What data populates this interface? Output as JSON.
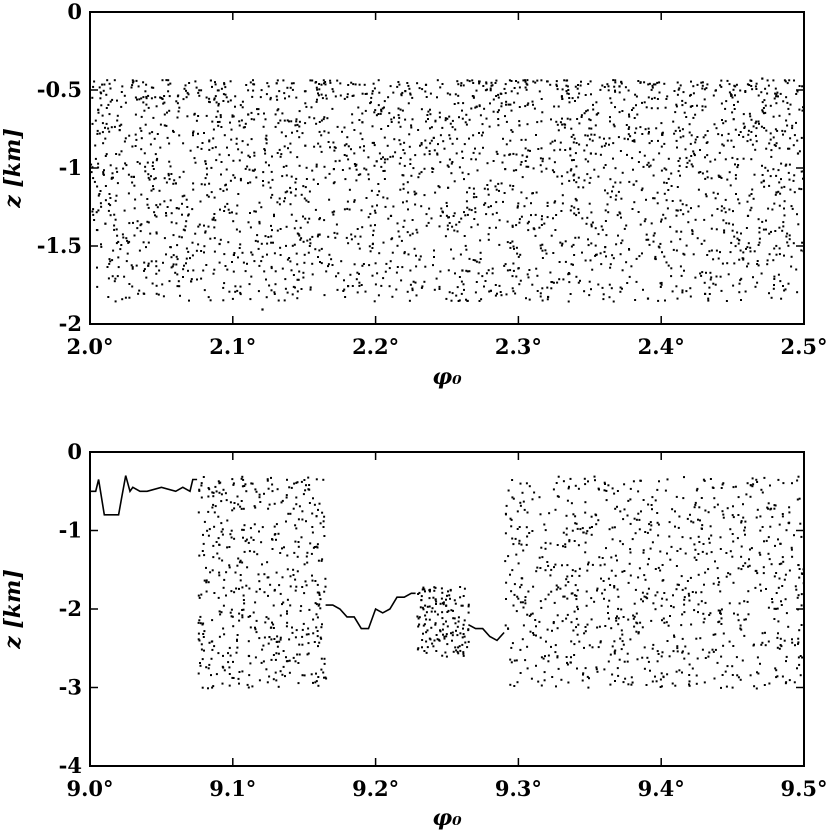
{
  "chart_data": [
    {
      "type": "scatter",
      "xlabel": "φ₀",
      "ylabel": "z [km]",
      "xlim": [
        2.0,
        2.5
      ],
      "ylim": [
        -2,
        0
      ],
      "x_ticks": [
        "2.0°",
        "2.1°",
        "2.2°",
        "2.3°",
        "2.4°",
        "2.5°"
      ],
      "x_tick_values": [
        2.0,
        2.1,
        2.2,
        2.3,
        2.4,
        2.5
      ],
      "y_ticks": [
        "0",
        "-0.5",
        "-1",
        "-1.5",
        "-2"
      ],
      "y_tick_values": [
        0,
        -0.5,
        -1,
        -1.5,
        -2
      ],
      "grid": false,
      "dense_band": {
        "x_range": [
          2.0,
          2.5
        ],
        "z_range": [
          -1.85,
          -0.43
        ],
        "approx_points": 2600
      },
      "series": [
        {
          "points": [
            [
              2.005,
              -0.62
            ],
            [
              2.01,
              -1.35
            ],
            [
              2.02,
              -0.75
            ],
            [
              2.03,
              -1.05
            ],
            [
              2.04,
              -1.62
            ],
            [
              2.05,
              -0.55
            ],
            [
              2.06,
              -1.25
            ],
            [
              2.07,
              -1.72
            ],
            [
              2.08,
              -0.95
            ],
            [
              2.09,
              -1.48
            ],
            [
              2.1,
              -1.55
            ],
            [
              2.11,
              -0.65
            ],
            [
              2.12,
              -1.9
            ],
            [
              2.13,
              -0.45
            ],
            [
              2.14,
              -1.15
            ],
            [
              2.15,
              -0.85
            ],
            [
              2.16,
              -1.42
            ],
            [
              2.17,
              -1.0
            ],
            [
              2.18,
              -1.75
            ],
            [
              2.19,
              -0.7
            ],
            [
              2.2,
              -0.95
            ],
            [
              2.21,
              -1.3
            ],
            [
              2.22,
              -0.5
            ],
            [
              2.23,
              -1.58
            ],
            [
              2.24,
              -0.8
            ],
            [
              2.25,
              -1.12
            ],
            [
              2.26,
              -1.65
            ],
            [
              2.27,
              -0.6
            ],
            [
              2.28,
              -1.78
            ],
            [
              2.29,
              -1.0
            ],
            [
              2.3,
              -0.72
            ],
            [
              2.31,
              -1.38
            ],
            [
              2.32,
              -1.82
            ],
            [
              2.33,
              -0.55
            ],
            [
              2.34,
              -1.2
            ],
            [
              2.35,
              -0.9
            ],
            [
              2.36,
              -1.5
            ],
            [
              2.37,
              -0.47
            ],
            [
              2.38,
              -1.1
            ],
            [
              2.39,
              -1.83
            ],
            [
              2.4,
              -0.78
            ],
            [
              2.41,
              -1.4
            ],
            [
              2.42,
              -0.6
            ],
            [
              2.43,
              -1.8
            ],
            [
              2.44,
              -1.05
            ],
            [
              2.45,
              -0.68
            ],
            [
              2.46,
              -1.3
            ],
            [
              2.47,
              -0.42
            ],
            [
              2.48,
              -1.15
            ],
            [
              2.495,
              -0.9
            ]
          ]
        }
      ]
    },
    {
      "type": "scatter",
      "xlabel": "φ₀",
      "ylabel": "z [km]",
      "xlim": [
        9.0,
        9.5
      ],
      "ylim": [
        -4,
        0
      ],
      "x_ticks": [
        "9.0°",
        "9.1°",
        "9.2°",
        "9.3°",
        "9.4°",
        "9.5°"
      ],
      "x_tick_values": [
        9.0,
        9.1,
        9.2,
        9.3,
        9.4,
        9.5
      ],
      "y_ticks": [
        "0",
        "-1",
        "-2",
        "-3",
        "-4"
      ],
      "y_tick_values": [
        0,
        -1,
        -2,
        -3,
        -4
      ],
      "grid": false,
      "curves": [
        {
          "x": [
            9.0,
            9.004,
            9.006,
            9.01,
            9.015,
            9.02,
            9.022,
            9.025,
            9.028,
            9.03,
            9.035,
            9.04,
            9.05,
            9.06,
            9.065,
            9.07,
            9.072,
            9.075
          ],
          "z": [
            -0.5,
            -0.5,
            -0.35,
            -0.8,
            -0.8,
            -0.8,
            -0.6,
            -0.3,
            -0.5,
            -0.45,
            -0.5,
            -0.5,
            -0.45,
            -0.5,
            -0.45,
            -0.5,
            -0.35,
            -0.35
          ]
        },
        {
          "x": [
            9.165,
            9.17,
            9.175,
            9.18,
            9.185,
            9.19,
            9.195,
            9.2,
            9.205,
            9.21,
            9.215,
            9.22,
            9.225,
            9.228
          ],
          "z": [
            -1.95,
            -1.95,
            -2.0,
            -2.1,
            -2.1,
            -2.25,
            -2.25,
            -2.0,
            -2.05,
            -2.0,
            -1.85,
            -1.85,
            -1.8,
            -1.8
          ]
        },
        {
          "x": [
            9.265,
            9.27,
            9.275,
            9.28,
            9.285,
            9.29
          ],
          "z": [
            -2.2,
            -2.25,
            -2.25,
            -2.35,
            -2.4,
            -2.3
          ]
        }
      ],
      "scatter_clusters": [
        {
          "x_range": [
            9.075,
            9.165
          ],
          "z_range": [
            -3.0,
            -0.3
          ],
          "approx_points": 500
        },
        {
          "x_range": [
            9.228,
            9.265
          ],
          "z_range": [
            -2.6,
            -1.7
          ],
          "approx_points": 150
        },
        {
          "x_range": [
            9.29,
            9.5
          ],
          "z_range": [
            -3.0,
            -0.3
          ],
          "approx_points": 900
        }
      ]
    }
  ]
}
